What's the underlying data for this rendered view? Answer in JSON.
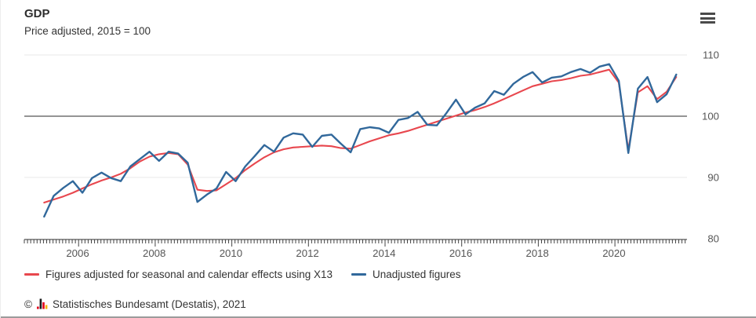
{
  "header": {
    "title": "GDP",
    "subtitle": "Price adjusted, 2015 = 100"
  },
  "menu": {
    "icon": "hamburger-menu-icon"
  },
  "chart_data": {
    "type": "line",
    "x_unit": "quarter",
    "x_start": "2005-Q1",
    "x_end": "2021-Q3",
    "x_tick_labels": [
      "2006",
      "2008",
      "2010",
      "2012",
      "2014",
      "2016",
      "2018",
      "2020"
    ],
    "x_minor_tick_interval": "monthly",
    "y_ticks": [
      80,
      90,
      100,
      110
    ],
    "ylim": [
      80,
      111
    ],
    "baseline_value": 100,
    "y_axis_side": "right",
    "grid": "horizontal-only",
    "legend_position": "bottom-left",
    "series": [
      {
        "name": "Figures adjusted for seasonal and calendar effects using X13",
        "color": "#e8474e",
        "values": [
          85.9,
          86.4,
          86.9,
          87.5,
          88.2,
          88.9,
          89.5,
          90.0,
          90.6,
          91.5,
          92.6,
          93.4,
          93.8,
          94.0,
          93.8,
          92.1,
          88.0,
          87.8,
          87.9,
          88.9,
          89.9,
          91.2,
          92.3,
          93.3,
          94.1,
          94.6,
          94.9,
          95.0,
          95.1,
          95.2,
          95.1,
          94.8,
          94.7,
          95.3,
          95.9,
          96.4,
          96.9,
          97.2,
          97.6,
          98.1,
          98.6,
          99.1,
          99.6,
          100.1,
          100.6,
          101.0,
          101.5,
          102.1,
          102.8,
          103.5,
          104.2,
          104.9,
          105.3,
          105.7,
          105.9,
          106.2,
          106.6,
          106.8,
          107.2,
          107.6,
          105.5,
          94.5,
          103.9,
          104.9,
          102.8,
          104.0,
          106.4
        ]
      },
      {
        "name": "Unadjusted figures",
        "color": "#31689b",
        "values": [
          83.6,
          87.0,
          88.3,
          89.4,
          87.5,
          89.9,
          90.8,
          89.9,
          89.4,
          91.8,
          93.0,
          94.2,
          92.7,
          94.2,
          93.9,
          92.4,
          86.0,
          87.2,
          88.2,
          90.9,
          89.4,
          91.8,
          93.5,
          95.3,
          94.2,
          96.5,
          97.2,
          97.0,
          95.0,
          96.8,
          97.0,
          95.5,
          94.1,
          97.9,
          98.2,
          98.0,
          97.3,
          99.4,
          99.7,
          100.7,
          98.6,
          98.5,
          100.5,
          102.7,
          100.3,
          101.4,
          102.1,
          104.1,
          103.5,
          105.3,
          106.4,
          107.2,
          105.5,
          106.3,
          106.5,
          107.2,
          107.7,
          107.1,
          108.1,
          108.5,
          105.8,
          94.0,
          104.5,
          106.4,
          102.3,
          103.6,
          106.8
        ]
      }
    ],
    "colors": {
      "grid_light": "#e8e8e8",
      "grid_baseline": "#2b2b2b",
      "axis_line": "#2b2b2b",
      "tick": "#444444",
      "tick_label": "#565656"
    }
  },
  "footer": {
    "copyright": "©",
    "logo_icon": "destatis-bar-chart-logo",
    "logo_colors": {
      "black": "#1a1a1a",
      "red": "#e2001a",
      "gold": "#f5b301"
    },
    "source": "Statistisches Bundesamt (Destatis), 2021"
  }
}
